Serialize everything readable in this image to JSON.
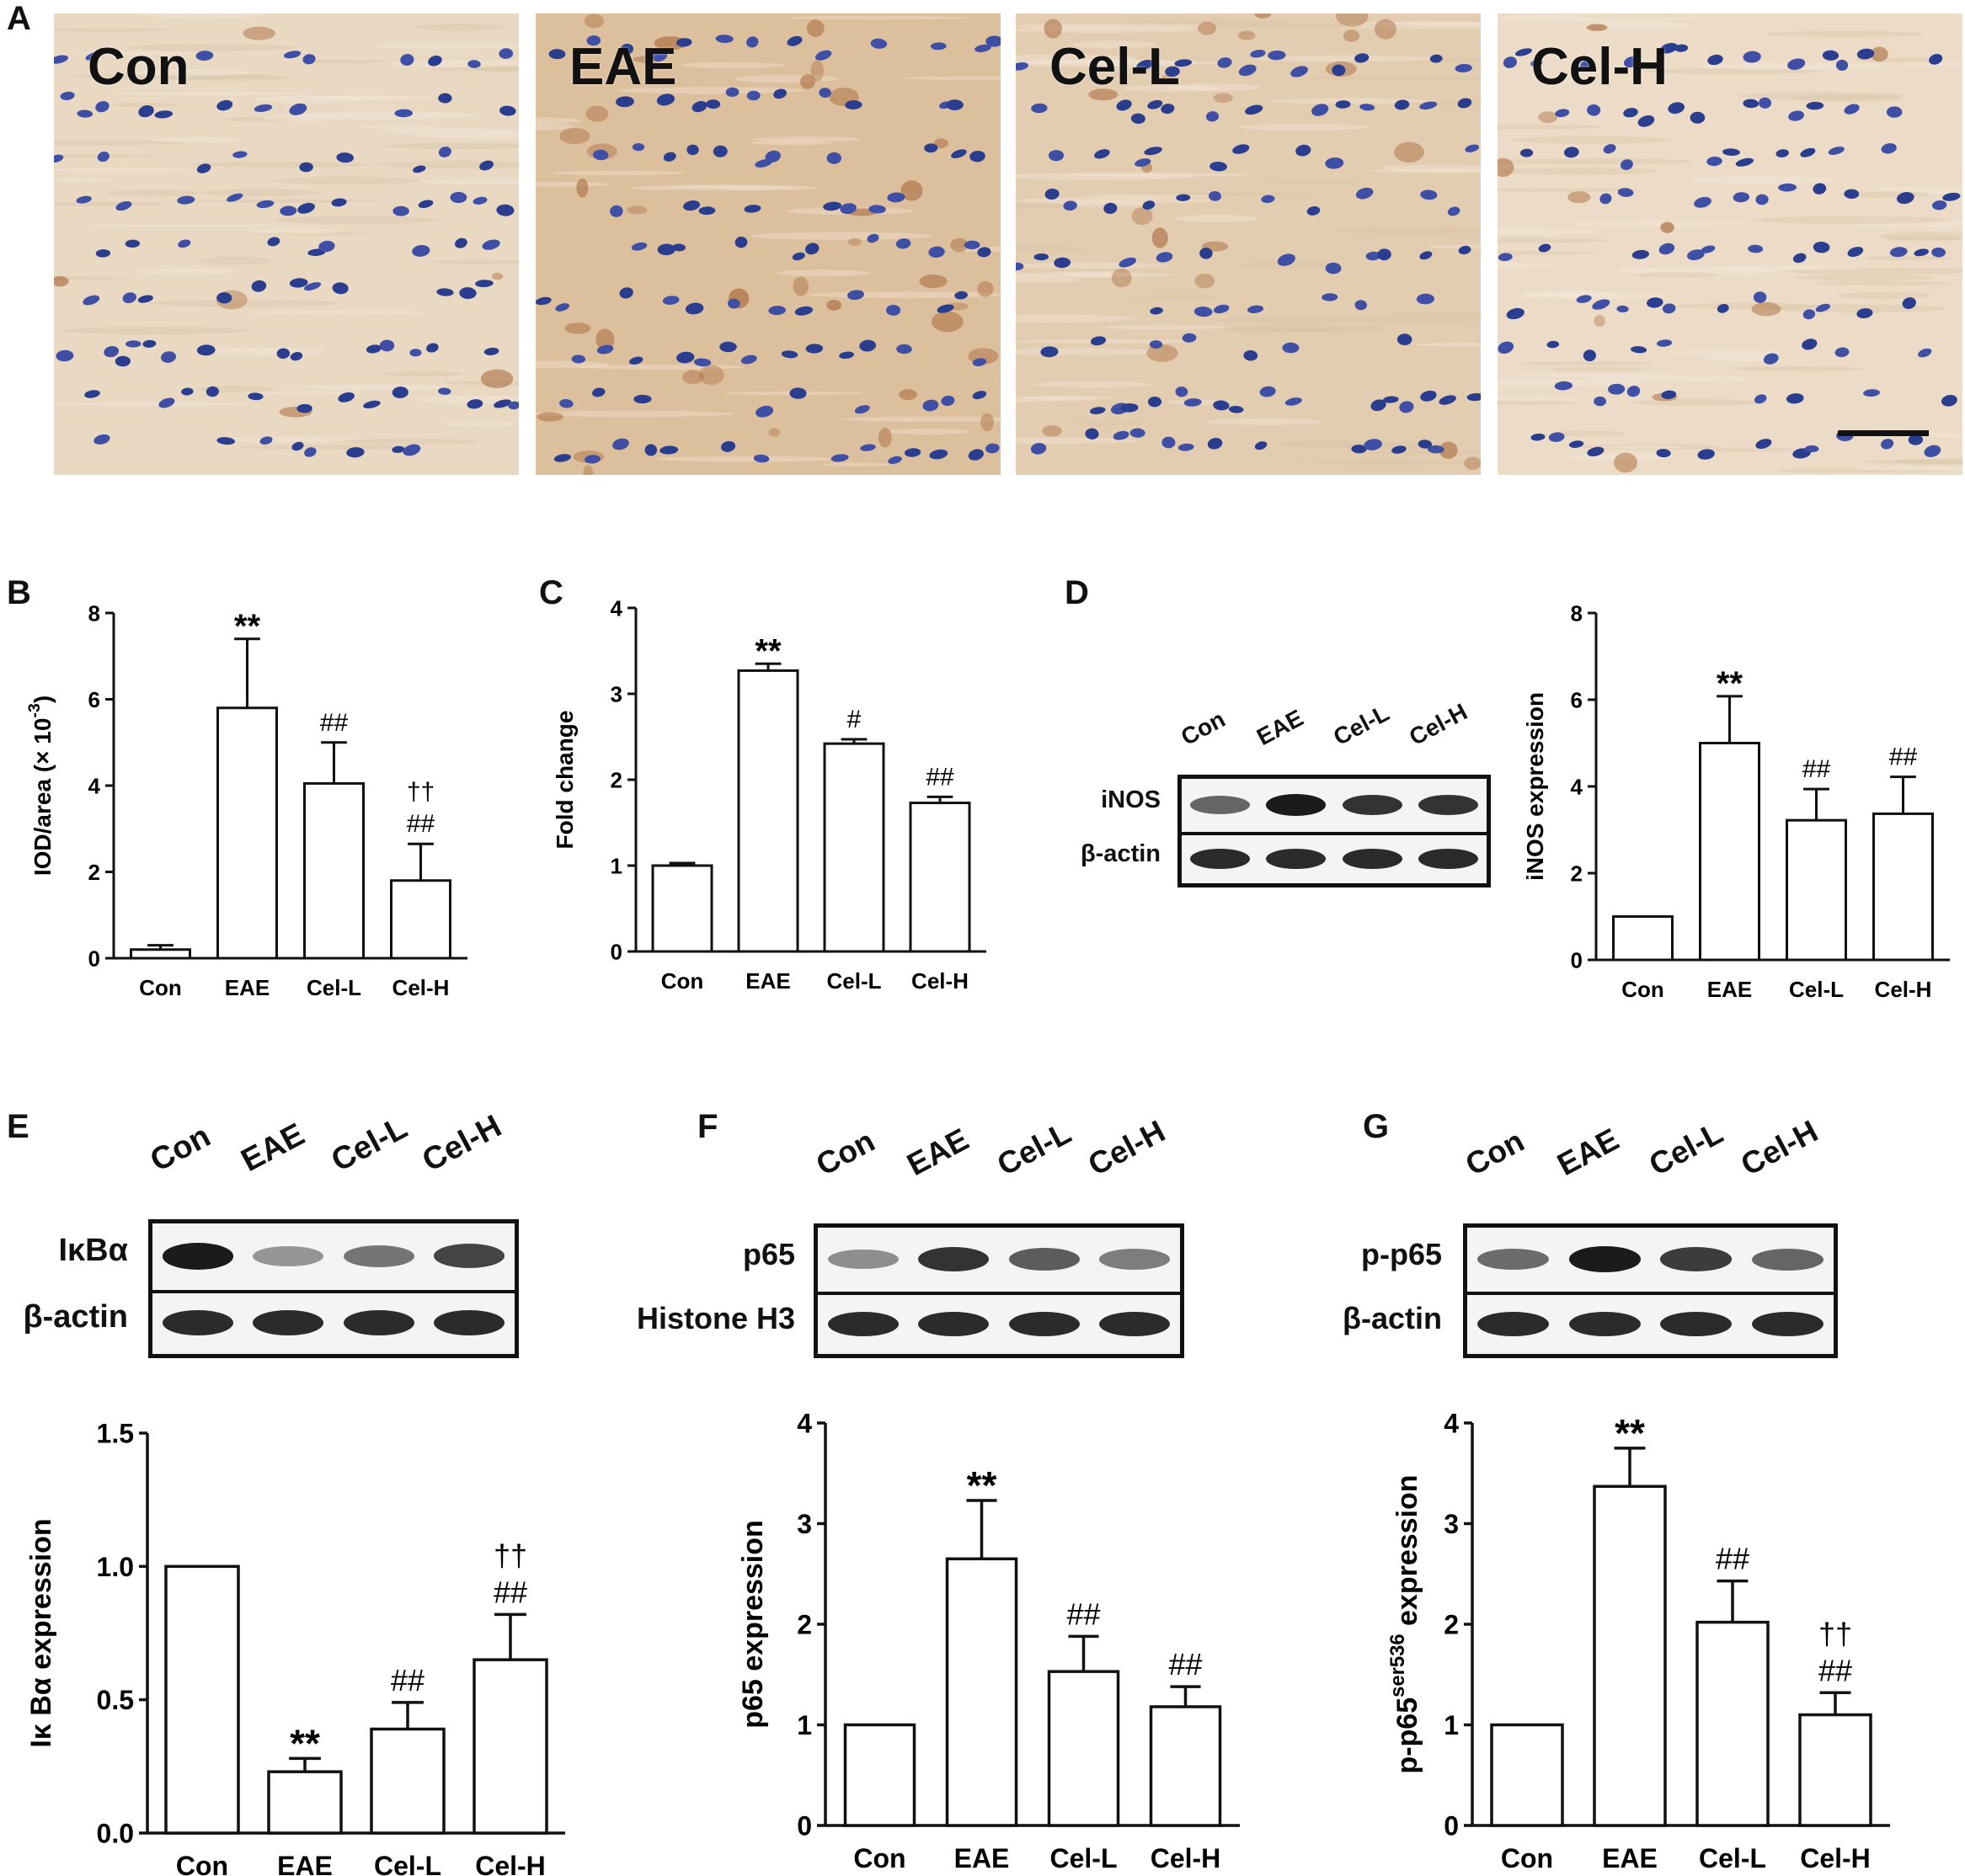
{
  "panels": {
    "A": "A",
    "B": "B",
    "C": "C",
    "D": "D",
    "E": "E",
    "F": "F",
    "G": "G"
  },
  "micrographs": [
    {
      "label": "Con",
      "tint": "#e9d9c3",
      "stain": 0.15
    },
    {
      "label": "EAE",
      "tint": "#dcbf9c",
      "stain": 0.9
    },
    {
      "label": "Cel-L",
      "tint": "#e2cdb1",
      "stain": 0.55
    },
    {
      "label": "Cel-H",
      "tint": "#ecdcc7",
      "stain": 0.25
    }
  ],
  "blots": {
    "D": {
      "lanes": [
        "Con",
        "EAE",
        "Cel-L",
        "Cel-H"
      ],
      "rows": [
        {
          "label": "iNOS",
          "intensity": [
            0.55,
            1.0,
            0.85,
            0.85
          ]
        },
        {
          "label": "β-actin",
          "intensity": [
            0.9,
            0.9,
            0.9,
            0.9
          ]
        }
      ]
    },
    "E": {
      "lanes": [
        "Con",
        "EAE",
        "Cel-L",
        "Cel-H"
      ],
      "rows": [
        {
          "label": "IκBα",
          "intensity": [
            1.0,
            0.25,
            0.45,
            0.75
          ]
        },
        {
          "label": "β-actin",
          "intensity": [
            0.9,
            0.9,
            0.9,
            0.9
          ]
        }
      ]
    },
    "F": {
      "lanes": [
        "Con",
        "EAE",
        "Cel-L",
        "Cel-H"
      ],
      "rows": [
        {
          "label": "p65",
          "intensity": [
            0.3,
            0.85,
            0.6,
            0.4
          ]
        },
        {
          "label": "Histone H3",
          "intensity": [
            0.9,
            0.9,
            0.9,
            0.9
          ]
        }
      ]
    },
    "G": {
      "lanes": [
        "Con",
        "EAE",
        "Cel-L",
        "Cel-H"
      ],
      "rows": [
        {
          "label": "p-p65",
          "intensity": [
            0.5,
            1.0,
            0.8,
            0.55
          ]
        },
        {
          "label": "β-actin",
          "intensity": [
            0.9,
            0.9,
            0.9,
            0.9
          ]
        }
      ]
    }
  },
  "chart_data": [
    {
      "id": "B",
      "type": "bar",
      "categories": [
        "Con",
        "EAE",
        "Cel-L",
        "Cel-H"
      ],
      "values": [
        0.2,
        5.8,
        4.05,
        1.8
      ],
      "errors": [
        0.1,
        1.6,
        0.95,
        0.85
      ],
      "annotations": [
        [],
        [
          "**"
        ],
        [
          "##"
        ],
        [
          "##",
          "††"
        ]
      ],
      "ylabel": "IOD/area (× 10",
      "ylabel_sup": "-3",
      "ylabel_tail": ")",
      "ylim": [
        0,
        8
      ],
      "yticks": [
        "0",
        "2",
        "4",
        "6",
        "8"
      ]
    },
    {
      "id": "C",
      "type": "bar",
      "categories": [
        "Con",
        "EAE",
        "Cel-L",
        "Cel-H"
      ],
      "values": [
        1.0,
        3.27,
        2.42,
        1.73
      ],
      "errors": [
        0.03,
        0.08,
        0.05,
        0.07
      ],
      "annotations": [
        [],
        [
          "**"
        ],
        [
          "#"
        ],
        [
          "##"
        ]
      ],
      "ylabel": "Fold change",
      "ylabel_sup": "",
      "ylabel_tail": "",
      "ylim": [
        0,
        4
      ],
      "yticks": [
        "0",
        "1",
        "2",
        "3",
        "4"
      ]
    },
    {
      "id": "D",
      "type": "bar",
      "categories": [
        "Con",
        "EAE",
        "Cel-L",
        "Cel-H"
      ],
      "values": [
        1.0,
        5.0,
        3.22,
        3.37
      ],
      "errors": [
        0,
        1.08,
        0.72,
        0.85
      ],
      "annotations": [
        [],
        [
          "**"
        ],
        [
          "##"
        ],
        [
          "##"
        ]
      ],
      "ylabel": "iNOS expression",
      "ylabel_sup": "",
      "ylabel_tail": "",
      "ylim": [
        0,
        8
      ],
      "yticks": [
        "0",
        "2",
        "4",
        "6",
        "8"
      ]
    },
    {
      "id": "E",
      "type": "bar",
      "categories": [
        "Con",
        "EAE",
        "Cel-L",
        "Cel-H"
      ],
      "values": [
        1.0,
        0.23,
        0.39,
        0.65
      ],
      "errors": [
        0,
        0.05,
        0.1,
        0.17
      ],
      "annotations": [
        [],
        [
          "**"
        ],
        [
          "##"
        ],
        [
          "##",
          "††"
        ]
      ],
      "ylabel": "Iκ Bα expression",
      "ylabel_sup": "",
      "ylabel_tail": "",
      "ylim": [
        0,
        1.5
      ],
      "yticks": [
        "0.0",
        "0.5",
        "1.0",
        "1.5"
      ]
    },
    {
      "id": "F",
      "type": "bar",
      "categories": [
        "Con",
        "EAE",
        "Cel-L",
        "Cel-H"
      ],
      "values": [
        1.0,
        2.65,
        1.53,
        1.18
      ],
      "errors": [
        0,
        0.58,
        0.35,
        0.2
      ],
      "annotations": [
        [],
        [
          "**"
        ],
        [
          "##"
        ],
        [
          "##"
        ]
      ],
      "ylabel": "p65 expression",
      "ylabel_sup": "",
      "ylabel_tail": "",
      "ylim": [
        0,
        4
      ],
      "yticks": [
        "0",
        "1",
        "2",
        "3",
        "4"
      ]
    },
    {
      "id": "G",
      "type": "bar",
      "categories": [
        "Con",
        "EAE",
        "Cel-L",
        "Cel-H"
      ],
      "values": [
        1.0,
        3.37,
        2.02,
        1.1
      ],
      "errors": [
        0,
        0.38,
        0.41,
        0.22
      ],
      "annotations": [
        [],
        [
          "**"
        ],
        [
          "##"
        ],
        [
          "##",
          "††"
        ]
      ],
      "ylabel": "p-p65",
      "ylabel_sup": "ser536",
      "ylabel_tail": " expression",
      "ylim": [
        0,
        4
      ],
      "yticks": [
        "0",
        "1",
        "2",
        "3",
        "4"
      ]
    }
  ]
}
